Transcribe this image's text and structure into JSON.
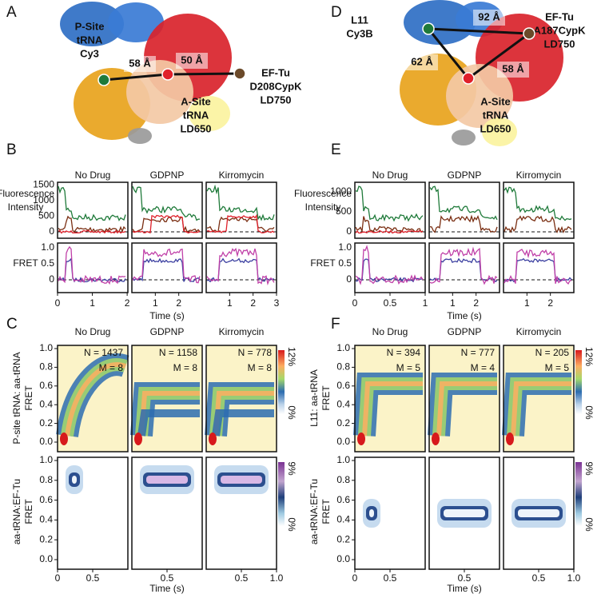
{
  "left": {
    "structure": {
      "letter": "A",
      "donor": [
        "P-Site",
        "tRNA",
        "Cy3"
      ],
      "acceptor": [
        "EF-Tu",
        "D208CypK",
        "LD750"
      ],
      "a_site": [
        "A-Site",
        "tRNA",
        "LD650"
      ],
      "distances": [
        "58 Å",
        "50 Å"
      ]
    },
    "traces": {
      "letter": "B",
      "titles": [
        "No Drug",
        "GDPNP",
        "Kirromycin"
      ],
      "intensity_label": [
        "Fluorescence",
        "Intensity"
      ],
      "intensity_ticks": [
        "1500",
        "1000",
        "500",
        "0"
      ],
      "fret_label": "FRET",
      "fret_ticks": [
        "1.0",
        "0.5",
        "0"
      ],
      "time_ticks": [
        [
          "0",
          "1",
          "2"
        ],
        [
          "1",
          "2"
        ],
        [
          "1",
          "2",
          "3"
        ]
      ],
      "time_label": "Time (s)"
    },
    "histograms": {
      "letter": "C",
      "titles": [
        "No Drug",
        "GDPNP",
        "Kirromycin"
      ],
      "stats": [
        [
          "N = 1437",
          "M = 8"
        ],
        [
          "N = 1158",
          "M = 8"
        ],
        [
          "N = 778",
          "M = 8"
        ]
      ],
      "top_label": [
        "P-site tRNA: aa-tRNA",
        "FRET"
      ],
      "bottom_label": [
        "aa-tRNA:EF-Tu",
        "FRET"
      ],
      "y_ticks": [
        "1.0",
        "0.8",
        "0.6",
        "0.4",
        "0.2",
        "0.0"
      ],
      "x_ticks": [
        [
          "0",
          "0.5"
        ],
        [
          "0.5"
        ],
        [
          "0.5",
          "1.0"
        ]
      ],
      "x_label": "Time (s)",
      "top_scale": [
        "12%",
        "0%"
      ],
      "bottom_scale": [
        "9%",
        "0%"
      ]
    }
  },
  "right": {
    "structure": {
      "letter": "D",
      "donor": [
        "L11",
        "Cy3B"
      ],
      "acceptor": [
        "EF-Tu",
        "A187CypK",
        "LD750"
      ],
      "a_site": [
        "A-Site",
        "tRNA",
        "LD650"
      ],
      "distances": [
        "92 Å",
        "62 Å",
        "58 Å"
      ]
    },
    "traces": {
      "letter": "E",
      "titles": [
        "No Drug",
        "GDPNP",
        "Kirromycin"
      ],
      "intensity_label": [
        "Fluorescence",
        "Intensity"
      ],
      "intensity_ticks": [
        "1000",
        "500",
        "0"
      ],
      "fret_label": "FRET",
      "fret_ticks": [
        "1.0",
        "0.5",
        "0"
      ],
      "time_ticks": [
        [
          "0",
          "0.5",
          "1"
        ],
        [
          "1",
          "2"
        ],
        [
          "1",
          "2"
        ]
      ],
      "time_label": "Time (s)"
    },
    "histograms": {
      "letter": "F",
      "titles": [
        "No Drug",
        "GDPNP",
        "Kirromycin"
      ],
      "stats": [
        [
          "N = 394",
          "M = 5"
        ],
        [
          "N = 777",
          "M = 4"
        ],
        [
          "N = 205",
          "M = 5"
        ]
      ],
      "top_label": [
        "L11: aa-tRNA",
        "FRET"
      ],
      "bottom_label": [
        "aa-tRNA:EF-Tu",
        "FRET"
      ],
      "y_ticks": [
        "1.0",
        "0.8",
        "0.6",
        "0.4",
        "0.2",
        "0.0"
      ],
      "x_ticks": [
        [
          "0",
          "0.5"
        ],
        [
          "0.5"
        ],
        [
          "0.5",
          "1.0"
        ]
      ],
      "x_label": "Time (s)",
      "top_scale": [
        "12%",
        "0%"
      ],
      "bottom_scale": [
        "9%",
        "0%"
      ]
    }
  }
}
